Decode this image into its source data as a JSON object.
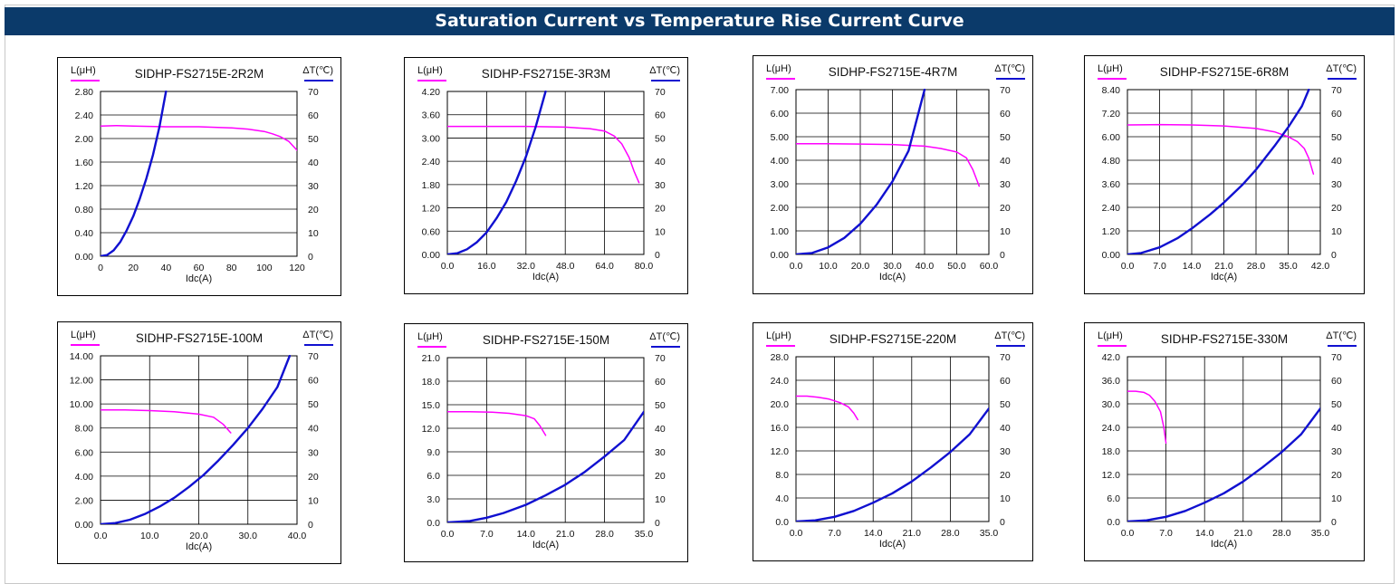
{
  "page": {
    "title": "Saturation Current vs Temperature Rise Current Curve"
  },
  "legend": {
    "left_axis_label": "L(μH)",
    "right_axis_label": "ΔT(℃)",
    "x_axis_label": "Idc(A)",
    "inductance_color": "#ff00ff",
    "temperature_color": "#1010d0"
  },
  "chart_data": [
    {
      "type": "line",
      "title": "SIDHP-FS2715E-2R2M",
      "xlabel": "Idc(A)",
      "ylabel": "L(μH)",
      "y2label": "ΔT(℃)",
      "x_ticks": [
        "0",
        "20",
        "40",
        "60",
        "80",
        "100",
        "120"
      ],
      "y_ticks": [
        "0.00",
        "0.40",
        "0.80",
        "1.20",
        "1.60",
        "2.00",
        "2.40",
        "2.80"
      ],
      "y2_ticks": [
        "0",
        "10",
        "20",
        "30",
        "40",
        "50",
        "60",
        "70"
      ],
      "xlim": [
        0,
        120
      ],
      "ylim": [
        0,
        2.8
      ],
      "y2lim": [
        0,
        70
      ],
      "grid": false,
      "series": [
        {
          "axis": "left",
          "color": "#ff00ff",
          "x": [
            0,
            10,
            20,
            40,
            60,
            80,
            90,
            100,
            105,
            110,
            115,
            120
          ],
          "y": [
            2.21,
            2.22,
            2.21,
            2.2,
            2.2,
            2.18,
            2.16,
            2.12,
            2.08,
            2.03,
            1.95,
            1.8
          ]
        },
        {
          "axis": "right",
          "color": "#1010d0",
          "x": [
            0,
            4,
            8,
            12,
            16,
            20,
            24,
            28,
            32,
            36,
            40
          ],
          "y": [
            0,
            0.5,
            2.5,
            6,
            11,
            17,
            24.5,
            33,
            43,
            55,
            70
          ]
        }
      ]
    },
    {
      "type": "line",
      "title": "SIDHP-FS2715E-3R3M",
      "xlabel": "Idc(A)",
      "ylabel": "L(μH)",
      "y2label": "ΔT(℃)",
      "x_ticks": [
        "0.0",
        "16.0",
        "32.0",
        "48.0",
        "64.0",
        "80.0"
      ],
      "y_ticks": [
        "0.00",
        "0.60",
        "1.20",
        "1.80",
        "2.40",
        "3.00",
        "3.60",
        "4.20"
      ],
      "y2_ticks": [
        "0",
        "10",
        "20",
        "30",
        "40",
        "50",
        "60",
        "70"
      ],
      "xlim": [
        0,
        80
      ],
      "ylim": [
        0,
        4.2
      ],
      "y2lim": [
        0,
        70
      ],
      "grid": true,
      "series": [
        {
          "axis": "left",
          "color": "#ff00ff",
          "x": [
            0,
            16,
            32,
            48,
            58,
            64,
            68,
            71,
            74,
            76,
            78
          ],
          "y": [
            3.3,
            3.3,
            3.3,
            3.28,
            3.24,
            3.18,
            3.05,
            2.85,
            2.5,
            2.15,
            1.85
          ]
        },
        {
          "axis": "right",
          "color": "#1010d0",
          "x": [
            0,
            4,
            8,
            12,
            16,
            20,
            24,
            28,
            32,
            36,
            40
          ],
          "y": [
            0,
            0.5,
            2.2,
            5.2,
            9.5,
            15.5,
            22.5,
            31.5,
            42,
            55,
            70
          ]
        }
      ]
    },
    {
      "type": "line",
      "title": "SIDHP-FS2715E-4R7M",
      "xlabel": "Idc(A)",
      "ylabel": "L(μH)",
      "y2label": "ΔT(℃)",
      "x_ticks": [
        "0.0",
        "10.0",
        "20.0",
        "30.0",
        "40.0",
        "50.0",
        "60.0"
      ],
      "y_ticks": [
        "0.00",
        "1.00",
        "2.00",
        "3.00",
        "4.00",
        "5.00",
        "6.00",
        "7.00"
      ],
      "y2_ticks": [
        "0",
        "10",
        "20",
        "30",
        "40",
        "50",
        "60",
        "70"
      ],
      "xlim": [
        0,
        60
      ],
      "ylim": [
        0,
        7
      ],
      "y2lim": [
        0,
        70
      ],
      "grid": true,
      "series": [
        {
          "axis": "left",
          "color": "#ff00ff",
          "x": [
            0,
            10,
            20,
            30,
            40,
            45,
            50,
            53,
            55,
            57
          ],
          "y": [
            4.7,
            4.7,
            4.69,
            4.67,
            4.6,
            4.5,
            4.35,
            4.1,
            3.6,
            2.9
          ]
        },
        {
          "axis": "right",
          "color": "#1010d0",
          "x": [
            0,
            5,
            10,
            15,
            20,
            25,
            30,
            35,
            40
          ],
          "y": [
            0,
            0.6,
            3,
            7,
            13,
            21,
            31,
            44,
            70
          ]
        }
      ]
    },
    {
      "type": "line",
      "title": "SIDHP-FS2715E-6R8M",
      "xlabel": "Idc(A)",
      "ylabel": "L(μH)",
      "y2label": "ΔT(℃)",
      "x_ticks": [
        "0.0",
        "7.0",
        "14.0",
        "21.0",
        "28.0",
        "35.0",
        "42.0"
      ],
      "y_ticks": [
        "0.00",
        "1.20",
        "2.40",
        "3.60",
        "4.80",
        "6.00",
        "7.20",
        "8.40"
      ],
      "y2_ticks": [
        "0",
        "10",
        "20",
        "30",
        "40",
        "50",
        "60",
        "70"
      ],
      "xlim": [
        0,
        42
      ],
      "ylim": [
        0,
        8.4
      ],
      "y2lim": [
        0,
        70
      ],
      "grid": true,
      "series": [
        {
          "axis": "left",
          "color": "#ff00ff",
          "x": [
            0,
            7,
            14,
            21,
            28,
            32,
            35,
            37,
            38.5,
            39.5,
            40.5
          ],
          "y": [
            6.6,
            6.62,
            6.6,
            6.55,
            6.42,
            6.25,
            6.0,
            5.75,
            5.4,
            4.9,
            4.1
          ]
        },
        {
          "axis": "right",
          "color": "#1010d0",
          "x": [
            0,
            3,
            7,
            11,
            14,
            18,
            21,
            25,
            28,
            32,
            35,
            38,
            39.5
          ],
          "y": [
            0,
            0.6,
            3,
            7,
            11,
            17,
            22,
            29.5,
            36,
            46,
            54,
            63,
            70
          ]
        }
      ]
    },
    {
      "type": "line",
      "title": "SIDHP-FS2715E-100M",
      "xlabel": "Idc(A)",
      "ylabel": "L(μH)",
      "y2label": "ΔT(℃)",
      "x_ticks": [
        "0.0",
        "10.0",
        "20.0",
        "30.0",
        "40.0"
      ],
      "y_ticks": [
        "0.00",
        "2.00",
        "4.00",
        "6.00",
        "8.00",
        "10.00",
        "12.00",
        "14.00"
      ],
      "y2_ticks": [
        "0",
        "10",
        "20",
        "30",
        "40",
        "50",
        "60",
        "70"
      ],
      "xlim": [
        0,
        40
      ],
      "ylim": [
        0,
        14
      ],
      "y2lim": [
        0,
        70
      ],
      "grid": true,
      "series": [
        {
          "axis": "left",
          "color": "#ff00ff",
          "x": [
            0,
            5,
            10,
            15,
            20,
            23,
            25,
            26.5
          ],
          "y": [
            9.5,
            9.5,
            9.45,
            9.35,
            9.15,
            8.9,
            8.3,
            7.6
          ]
        },
        {
          "axis": "right",
          "color": "#1010d0",
          "x": [
            0,
            3,
            6,
            9,
            12,
            15,
            18,
            21,
            24,
            27,
            30,
            33,
            36,
            38.5
          ],
          "y": [
            0,
            0.5,
            1.9,
            4.2,
            7.3,
            11,
            15.5,
            20.5,
            26.5,
            33,
            40,
            48,
            57,
            70
          ]
        }
      ]
    },
    {
      "type": "line",
      "title": "SIDHP-FS2715E-150M",
      "xlabel": "Idc(A)",
      "ylabel": "L(μH)",
      "y2label": "ΔT(℃)",
      "x_ticks": [
        "0.0",
        "7.0",
        "14.0",
        "21.0",
        "28.0",
        "35.0"
      ],
      "y_ticks": [
        "0.0",
        "3.0",
        "6.0",
        "9.0",
        "12.0",
        "15.0",
        "18.0",
        "21.0"
      ],
      "y2_ticks": [
        "0",
        "10",
        "20",
        "30",
        "40",
        "50",
        "60",
        "70"
      ],
      "xlim": [
        0,
        35
      ],
      "ylim": [
        0,
        21
      ],
      "y2lim": [
        0,
        70
      ],
      "grid": true,
      "series": [
        {
          "axis": "left",
          "color": "#ff00ff",
          "x": [
            0,
            4,
            8,
            11,
            14,
            15.5,
            16.5,
            17.5
          ],
          "y": [
            14.1,
            14.1,
            14.05,
            13.9,
            13.6,
            13.2,
            12.3,
            11.1
          ]
        },
        {
          "axis": "right",
          "color": "#1010d0",
          "x": [
            0,
            4,
            7,
            10,
            14,
            17.5,
            21,
            24.5,
            28,
            31.5,
            35
          ],
          "y": [
            0,
            0.6,
            2,
            4,
            7.5,
            11.5,
            16,
            21.5,
            28,
            35,
            47
          ]
        }
      ]
    },
    {
      "type": "line",
      "title": "SIDHP-FS2715E-220M",
      "xlabel": "Idc(A)",
      "ylabel": "L(μH)",
      "y2label": "ΔT(℃)",
      "x_ticks": [
        "0.0",
        "7.0",
        "14.0",
        "21.0",
        "28.0",
        "35.0"
      ],
      "y_ticks": [
        "0.0",
        "4.0",
        "8.0",
        "12.0",
        "16.0",
        "20.0",
        "24.0",
        "28.0"
      ],
      "y2_ticks": [
        "0",
        "10",
        "20",
        "30",
        "40",
        "50",
        "60",
        "70"
      ],
      "xlim": [
        0,
        35
      ],
      "ylim": [
        0,
        28
      ],
      "y2lim": [
        0,
        70
      ],
      "grid": true,
      "series": [
        {
          "axis": "left",
          "color": "#ff00ff",
          "x": [
            0,
            2,
            4,
            6,
            8,
            9.5,
            10.5,
            11.2
          ],
          "y": [
            21.3,
            21.3,
            21.1,
            20.8,
            20.2,
            19.5,
            18.4,
            17.3
          ]
        },
        {
          "axis": "right",
          "color": "#1010d0",
          "x": [
            0,
            3.5,
            7,
            10.5,
            14,
            17.5,
            21,
            24.5,
            28,
            31.5,
            35
          ],
          "y": [
            0,
            0.5,
            2,
            4.5,
            8,
            12,
            17,
            23,
            29.5,
            37,
            48
          ]
        }
      ]
    },
    {
      "type": "line",
      "title": "SIDHP-FS2715E-330M",
      "xlabel": "Idc(A)",
      "ylabel": "L(μH)",
      "y2label": "ΔT(℃)",
      "x_ticks": [
        "0.0",
        "7.0",
        "14.0",
        "21.0",
        "28.0",
        "35.0"
      ],
      "y_ticks": [
        "0.0",
        "6.0",
        "12.0",
        "18.0",
        "24.0",
        "30.0",
        "36.0",
        "42.0"
      ],
      "y2_ticks": [
        "0",
        "10",
        "20",
        "30",
        "40",
        "50",
        "60",
        "70"
      ],
      "xlim": [
        0,
        35
      ],
      "ylim": [
        0,
        42
      ],
      "y2lim": [
        0,
        70
      ],
      "grid": true,
      "series": [
        {
          "axis": "left",
          "color": "#ff00ff",
          "x": [
            0,
            1.5,
            3,
            4,
            5,
            6,
            6.6,
            7
          ],
          "y": [
            33.2,
            33.2,
            32.9,
            32.2,
            30.6,
            28,
            24,
            20
          ]
        },
        {
          "axis": "right",
          "color": "#1010d0",
          "x": [
            0,
            3.5,
            7,
            10.5,
            14,
            17.5,
            21,
            24.5,
            28,
            31.5,
            35
          ],
          "y": [
            0,
            0.5,
            2,
            4.5,
            8,
            12,
            17,
            23,
            29.5,
            37,
            48
          ]
        }
      ]
    }
  ]
}
